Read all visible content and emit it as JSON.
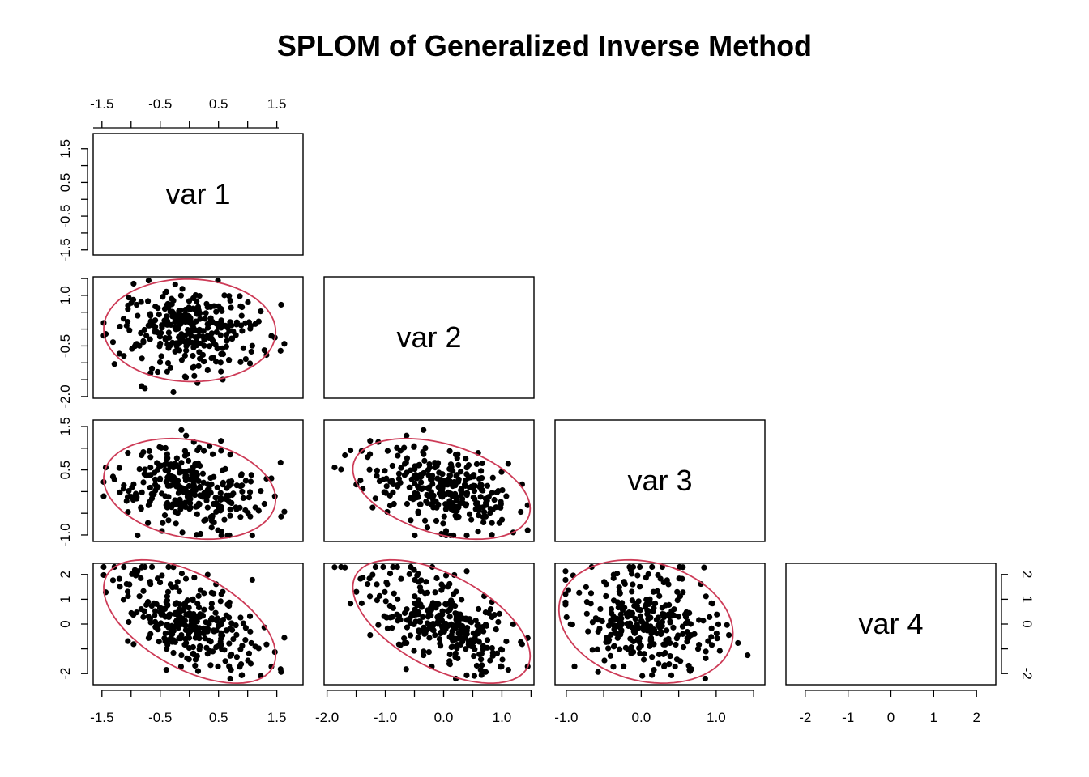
{
  "chart_data": {
    "type": "scatter",
    "subtype": "scatterplot-matrix",
    "title": "SPLOM of Generalized Inverse Method",
    "variables": [
      "var 1",
      "var 2",
      "var 3",
      "var 4"
    ],
    "ranges": {
      "var 1": [
        -1.65,
        1.95
      ],
      "var 2": [
        -2.05,
        1.55
      ],
      "var 3": [
        -1.15,
        1.65
      ],
      "var 4": [
        -2.45,
        2.45
      ]
    },
    "axis_ticks": {
      "var 1": [
        "-1.5",
        "-0.5",
        "0.5",
        "1.5"
      ],
      "var 2": [
        "-2.0",
        "-0.5",
        "1.0"
      ],
      "var 3": [
        "-1.0",
        "0.5",
        "1.5"
      ],
      "var 4": [
        "-2",
        "0",
        "1",
        "2"
      ],
      "bottom": {
        "var 1": [
          "-1.5",
          "-0.5",
          "0.5",
          "1.5"
        ],
        "var 2": [
          "-2.0",
          "-1.0",
          "0.0",
          "1.0"
        ],
        "var 3": [
          "-1.0",
          "0.0",
          "1.0"
        ],
        "var 4": [
          "-2",
          "-1",
          "0",
          "1",
          "2"
        ]
      }
    },
    "point_color": "#000000",
    "ellipse_color": "#cd3b57",
    "n_points": 300,
    "correlations": {
      "var1_var2": 0.0,
      "var1_var3": -0.3,
      "var1_var4": -0.6,
      "var2_var3": -0.45,
      "var2_var4": -0.6,
      "var3_var4": -0.15
    },
    "grid": false,
    "legend": "none"
  }
}
